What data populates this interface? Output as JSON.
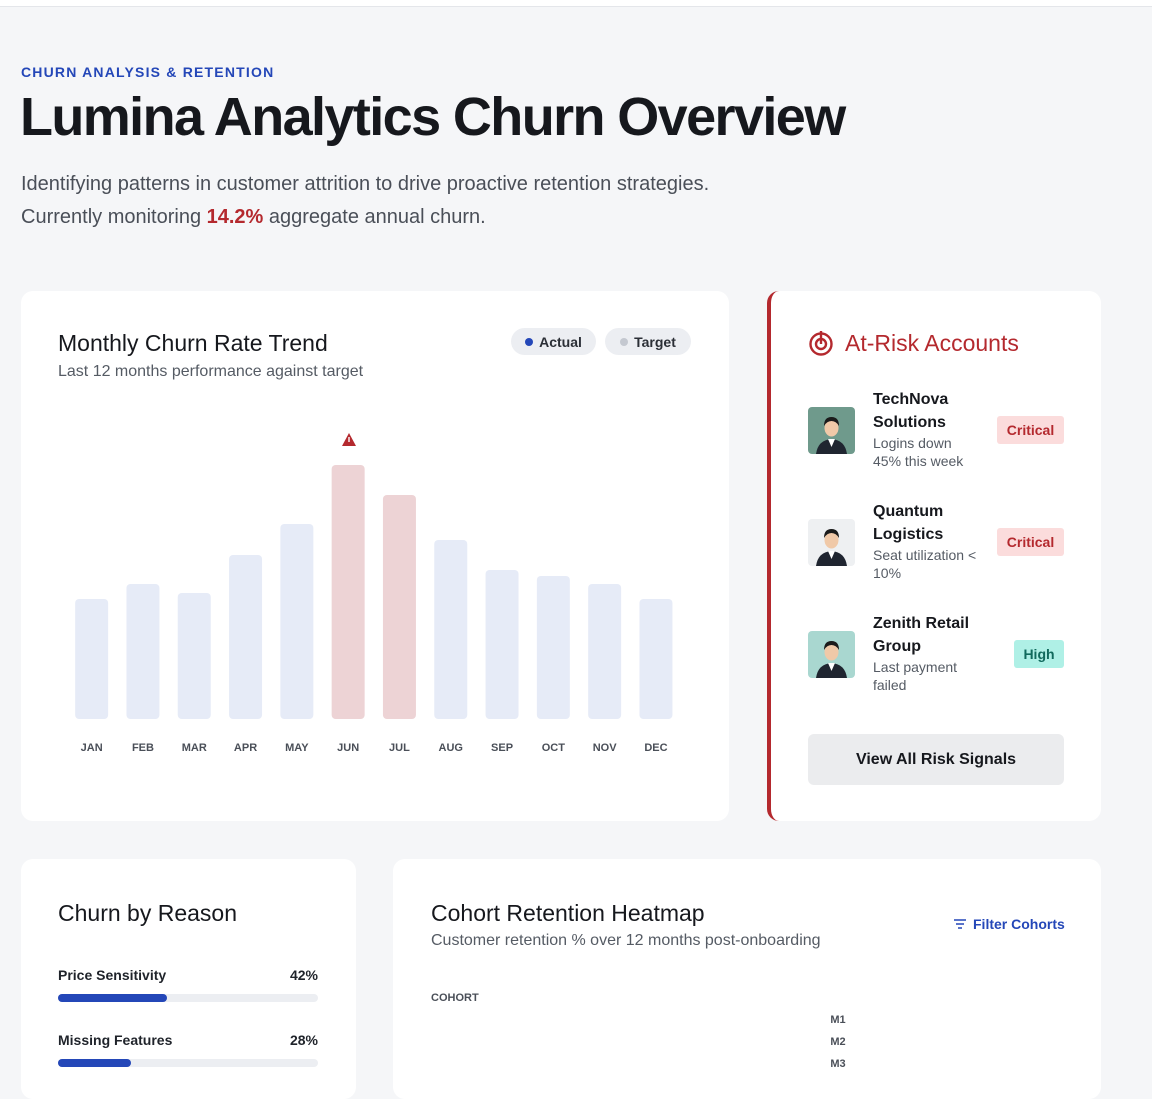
{
  "header": {
    "eyebrow": "CHURN ANALYSIS & RETENTION",
    "title": "Lumina Analytics Churn Overview",
    "description_before": "Identifying patterns in customer attrition to drive proactive retention strategies. Currently monitoring ",
    "description_highlight": "14.2%",
    "description_after": " aggregate annual churn."
  },
  "chart_data": {
    "type": "bar",
    "title": "Monthly Churn Rate Trend",
    "subtitle": "Last 12 months performance against target",
    "legend": [
      {
        "name": "Actual",
        "color": "#2447b8"
      },
      {
        "name": "Target",
        "color": "#c4c8d0"
      }
    ],
    "categories": [
      "JAN",
      "FEB",
      "MAR",
      "APR",
      "MAY",
      "JUN",
      "JUL",
      "AUG",
      "SEP",
      "OCT",
      "NOV",
      "DEC"
    ],
    "values": [
      1.2,
      1.35,
      1.26,
      1.64,
      1.95,
      2.54,
      2.24,
      1.79,
      1.49,
      1.43,
      1.35,
      1.2
    ],
    "colors": [
      "#e6ebf7",
      "#e6ebf7",
      "#e6ebf7",
      "#e6ebf7",
      "#e6ebf7",
      "#edd3d5",
      "#edd3d5",
      "#e6ebf7",
      "#e6ebf7",
      "#e6ebf7",
      "#e6ebf7",
      "#e6ebf7"
    ],
    "ylim": [
      0,
      3
    ]
  },
  "risk": {
    "title": "At-Risk Accounts",
    "accounts": [
      {
        "name": "TechNova Solutions",
        "note": "Logins down 45% this week",
        "badge": "Critical"
      },
      {
        "name": "Quantum Logistics",
        "note": "Seat utilization < 10%",
        "badge": "Critical"
      },
      {
        "name": "Zenith Retail Group",
        "note": "Last payment failed",
        "badge": "High"
      }
    ],
    "button": "View All Risk Signals"
  },
  "reasons": {
    "title": "Churn by Reason",
    "categories": [
      "Price Sensitivity",
      "Missing Features"
    ],
    "values": [
      42,
      28
    ],
    "value_labels": [
      "42%",
      "28%"
    ],
    "xlim": [
      0,
      100
    ]
  },
  "heatmap": {
    "title": "Cohort Retention Heatmap",
    "subtitle": "Customer retention % over 12 months post-onboarding",
    "filter": "Filter Cohorts",
    "column_header": "COHORT",
    "rows": [
      "M1",
      "M2",
      "M3"
    ]
  }
}
